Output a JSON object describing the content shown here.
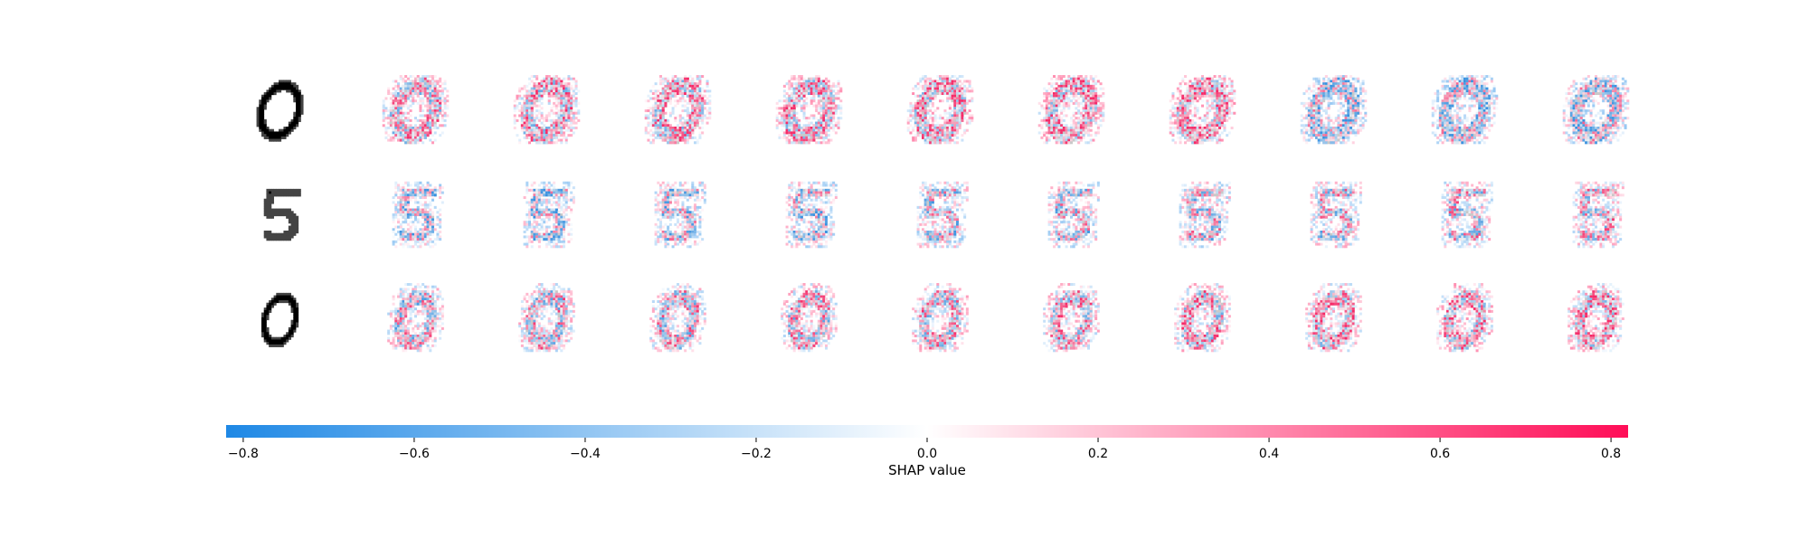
{
  "chart_data": {
    "type": "heatmap",
    "title": "",
    "rows": [
      {
        "input_digit": "0",
        "shap_panels": 10
      },
      {
        "input_digit": "5",
        "shap_panels": 10
      },
      {
        "input_digit": "0",
        "shap_panels": 10
      }
    ],
    "colorbar": {
      "label": "SHAP value",
      "range": [
        -0.82,
        0.82
      ],
      "ticks": [
        {
          "value": -0.8,
          "label": "−0.8"
        },
        {
          "value": -0.6,
          "label": "−0.6"
        },
        {
          "value": -0.4,
          "label": "−0.4"
        },
        {
          "value": -0.2,
          "label": "−0.2"
        },
        {
          "value": 0.0,
          "label": "0.0"
        },
        {
          "value": 0.2,
          "label": "0.2"
        },
        {
          "value": 0.4,
          "label": "0.4"
        },
        {
          "value": 0.6,
          "label": "0.6"
        },
        {
          "value": 0.8,
          "label": "0.8"
        }
      ],
      "colors": {
        "negative": "#1E88E5",
        "zero": "#FFFFFF",
        "positive": "#FF0D57"
      }
    },
    "grid": false,
    "legend": "bottom"
  }
}
